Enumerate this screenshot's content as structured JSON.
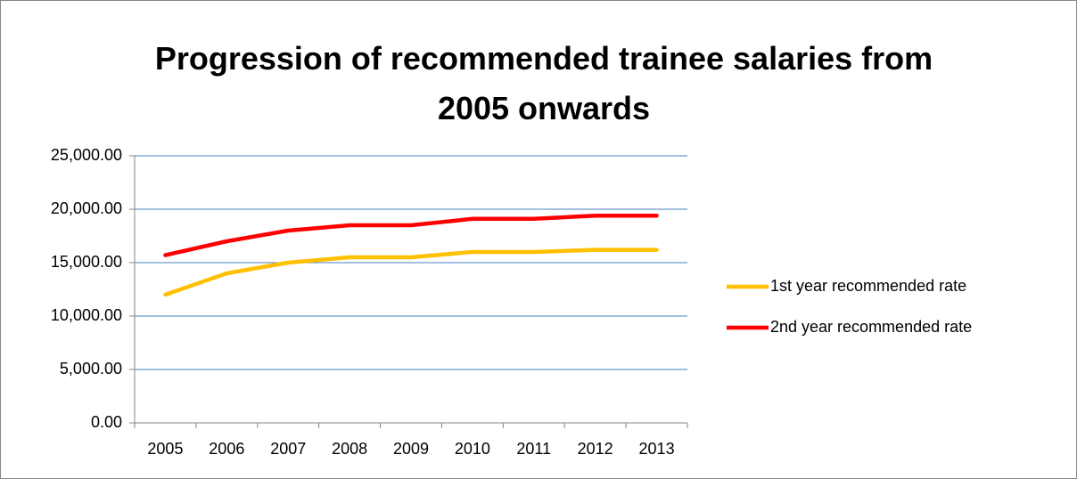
{
  "chart_data": {
    "type": "line",
    "title": "Progression of recommended trainee salaries from 2005 onwards",
    "categories": [
      "2005",
      "2006",
      "2007",
      "2008",
      "2009",
      "2010",
      "2011",
      "2012",
      "2013"
    ],
    "series": [
      {
        "name": "1st year recommended rate",
        "color": "#ffc000",
        "values": [
          12000,
          14000,
          15000,
          15500,
          15500,
          16000,
          16000,
          16200,
          16200
        ]
      },
      {
        "name": "2nd year recommended rate",
        "color": "#ff0000",
        "values": [
          15700,
          17000,
          18000,
          18500,
          18500,
          19100,
          19100,
          19400,
          19400
        ]
      }
    ],
    "ylim": [
      0,
      25000
    ],
    "yticks": [
      {
        "value": 0,
        "label": "0.00"
      },
      {
        "value": 5000,
        "label": "5,000.00"
      },
      {
        "value": 10000,
        "label": "10,000.00"
      },
      {
        "value": 15000,
        "label": "15,000.00"
      },
      {
        "value": 20000,
        "label": "20,000.00"
      },
      {
        "value": 25000,
        "label": "25,000.00"
      }
    ],
    "grid": true,
    "legend": "right"
  }
}
